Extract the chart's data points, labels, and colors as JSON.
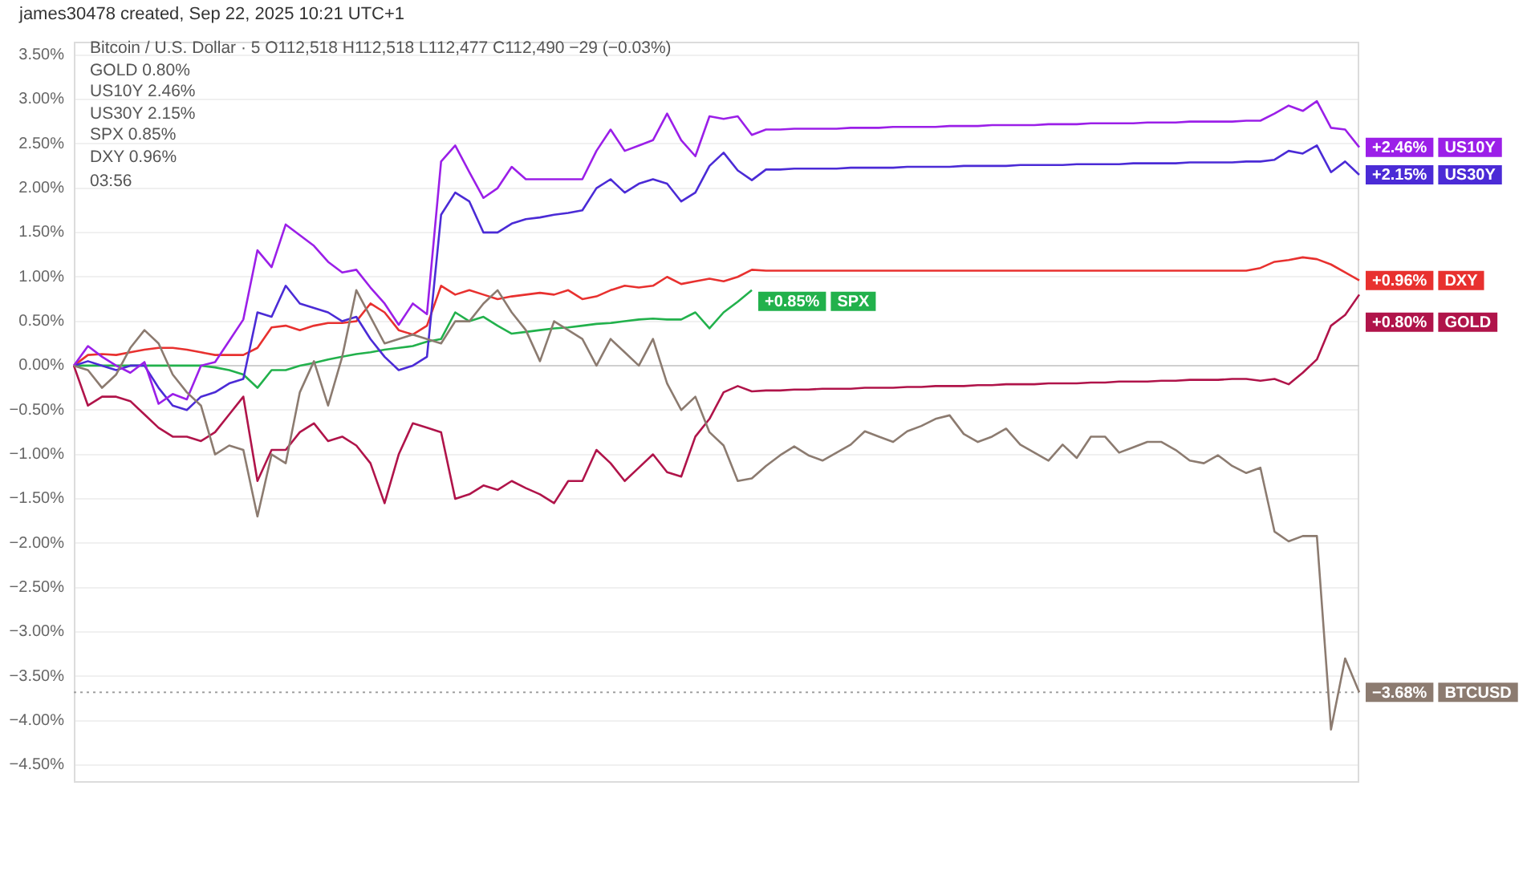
{
  "chart_data": {
    "type": "line",
    "title": "james30478 created, Sep 22, 2025 10:21 UTC+1",
    "subtitle": "Bitcoin / U.S. Dollar · 5  O112,518 H112,518 L112,477 C112,490 −29 (−0.03%)",
    "annotations": [
      "GOLD 0.80%",
      "US10Y 2.46%",
      "US30Y 2.15%",
      "SPX 0.85%",
      "DXY 0.96%",
      "03:56"
    ],
    "categories": [
      null,
      null,
      null,
      null,
      null,
      null,
      null,
      null,
      null,
      null,
      null,
      null,
      null,
      null,
      null,
      null,
      null,
      null,
      null,
      null,
      null,
      null,
      null,
      null,
      null,
      null,
      null,
      null,
      null,
      null,
      null,
      null,
      null,
      null,
      null,
      null,
      null,
      null,
      null,
      null,
      null,
      null,
      null,
      null,
      null,
      null,
      null,
      null,
      null,
      null,
      null,
      null,
      null,
      null,
      null,
      null,
      null,
      null,
      null,
      null,
      null,
      null,
      null,
      null,
      null,
      null,
      null,
      null,
      null,
      null,
      null,
      null,
      null,
      null,
      null,
      null,
      null,
      null,
      null,
      null,
      null,
      null,
      null,
      null,
      null,
      null,
      null,
      null,
      null,
      null,
      null,
      null
    ],
    "ylim": [
      -4.7,
      3.65
    ],
    "yticks": [
      {
        "value": 3.5,
        "label": "3.50%"
      },
      {
        "value": 3,
        "label": "3.00%"
      },
      {
        "value": 2.5,
        "label": "2.50%"
      },
      {
        "value": 2,
        "label": "2.00%"
      },
      {
        "value": 1.5,
        "label": "1.50%"
      },
      {
        "value": 1,
        "label": "1.00%"
      },
      {
        "value": 0.5,
        "label": "0.50%"
      },
      {
        "value": 0,
        "label": "0.00%"
      },
      {
        "value": -0.5,
        "label": "−0.50%"
      },
      {
        "value": -1,
        "label": "−1.00%"
      },
      {
        "value": -1.5,
        "label": "−1.50%"
      },
      {
        "value": -2,
        "label": "−2.00%"
      },
      {
        "value": -2.5,
        "label": "−2.50%"
      },
      {
        "value": -3,
        "label": "−3.00%"
      },
      {
        "value": -3.5,
        "label": "−3.50%"
      },
      {
        "value": -4,
        "label": "−4.00%"
      },
      {
        "value": -4.5,
        "label": "−4.50%"
      }
    ],
    "tick_labels": "y",
    "grid": "y",
    "legend": "right",
    "marker": "none",
    "line_style": "solid",
    "ref_lines": [
      {
        "axis": "y",
        "value": 0,
        "color": "#cfcfcf",
        "line_style": "solid"
      },
      {
        "axis": "y",
        "value": -3.68,
        "color": "#a0a0a0",
        "line_style": "dotted"
      }
    ],
    "series": [
      {
        "name": "BTCUSD",
        "color": "#8c7b70",
        "values": [
          0,
          -0.05,
          -0.25,
          -0.1,
          0.2,
          0.4,
          0.25,
          -0.1,
          -0.3,
          -0.45,
          -1.0,
          -0.9,
          -0.95,
          -1.7,
          -1.0,
          -1.1,
          -0.3,
          0.05,
          -0.45,
          0.1,
          0.85,
          0.55,
          0.25,
          0.3,
          0.35,
          0.3,
          0.25,
          0.5,
          0.5,
          0.7,
          0.85,
          0.6,
          0.4,
          0.05,
          0.5,
          0.4,
          0.3,
          0.0,
          0.3,
          0.15,
          0.0,
          0.3,
          -0.2,
          -0.5,
          -0.35,
          -0.75,
          -0.9,
          -1.3,
          -1.27,
          -1.13,
          -1.01,
          -0.91,
          -1.01,
          -1.07,
          -0.98,
          -0.89,
          -0.74,
          -0.8,
          -0.86,
          -0.74,
          -0.68,
          -0.6,
          -0.56,
          -0.77,
          -0.86,
          -0.8,
          -0.71,
          -0.89,
          -0.98,
          -1.07,
          -0.89,
          -1.04,
          -0.8,
          -0.8,
          -0.98,
          -0.92,
          -0.86,
          -0.86,
          -0.95,
          -1.07,
          -1.1,
          -1.01,
          -1.13,
          -1.21,
          -1.15,
          -1.87,
          -1.98,
          -1.92,
          -1.92,
          -4.1,
          -3.3,
          -3.68
        ],
        "value_labels": [
          null,
          null,
          null,
          null,
          null,
          null,
          null,
          null,
          null,
          null,
          null,
          null,
          null,
          null,
          null,
          null,
          null,
          null,
          null,
          null,
          null,
          null,
          null,
          null,
          null,
          null,
          null,
          null,
          null,
          null,
          null,
          null,
          null,
          null,
          null,
          null,
          null,
          null,
          null,
          null,
          null,
          null,
          null,
          null,
          null,
          null,
          null,
          null,
          null,
          null,
          null,
          null,
          null,
          null,
          null,
          null,
          null,
          null,
          null,
          null,
          null,
          null,
          null,
          null,
          null,
          null,
          null,
          null,
          null,
          null,
          null,
          null,
          null,
          null,
          null,
          null,
          null,
          null,
          null,
          null,
          null,
          null,
          null,
          null,
          null,
          null,
          null,
          null,
          null,
          null,
          null,
          "−3.68%"
        ]
      },
      {
        "name": "GOLD",
        "color": "#b0144a",
        "values": [
          0,
          -0.45,
          -0.35,
          -0.35,
          -0.4,
          -0.55,
          -0.7,
          -0.8,
          -0.8,
          -0.85,
          -0.75,
          -0.55,
          -0.35,
          -1.3,
          -0.95,
          -0.95,
          -0.75,
          -0.65,
          -0.85,
          -0.8,
          -0.9,
          -1.1,
          -1.55,
          -1.0,
          -0.65,
          -0.7,
          -0.75,
          -1.5,
          -1.45,
          -1.35,
          -1.4,
          -1.3,
          -1.38,
          -1.45,
          -1.55,
          -1.3,
          -1.3,
          -0.95,
          -1.1,
          -1.3,
          -1.15,
          -1.0,
          -1.2,
          -1.25,
          -0.8,
          -0.6,
          -0.3,
          -0.23,
          -0.29,
          -0.28,
          -0.28,
          -0.27,
          -0.27,
          -0.26,
          -0.26,
          -0.26,
          -0.25,
          -0.25,
          -0.25,
          -0.24,
          -0.24,
          -0.23,
          -0.23,
          -0.23,
          -0.22,
          -0.22,
          -0.21,
          -0.21,
          -0.21,
          -0.2,
          -0.2,
          -0.2,
          -0.19,
          -0.19,
          -0.18,
          -0.18,
          -0.18,
          -0.17,
          -0.17,
          -0.16,
          -0.16,
          -0.16,
          -0.15,
          -0.15,
          -0.17,
          -0.15,
          -0.21,
          -0.08,
          0.07,
          0.45,
          0.57,
          0.8
        ],
        "value_labels": [
          null,
          null,
          null,
          null,
          null,
          null,
          null,
          null,
          null,
          null,
          null,
          null,
          null,
          null,
          null,
          null,
          null,
          null,
          null,
          null,
          null,
          null,
          null,
          null,
          null,
          null,
          null,
          null,
          null,
          null,
          null,
          null,
          null,
          null,
          null,
          null,
          null,
          null,
          null,
          null,
          null,
          null,
          null,
          null,
          null,
          null,
          null,
          null,
          null,
          null,
          null,
          null,
          null,
          null,
          null,
          null,
          null,
          null,
          null,
          null,
          null,
          null,
          null,
          null,
          null,
          null,
          null,
          null,
          null,
          null,
          null,
          null,
          null,
          null,
          null,
          null,
          null,
          null,
          null,
          null,
          null,
          null,
          null,
          null,
          null,
          null,
          null,
          null,
          null,
          null,
          null,
          "+0.80%"
        ]
      },
      {
        "name": "US10Y",
        "color": "#9b1fe8",
        "values": [
          0,
          0.22,
          0.1,
          0,
          -0.08,
          0.04,
          -0.43,
          -0.32,
          -0.38,
          0,
          0.04,
          0.28,
          0.52,
          1.3,
          1.11,
          1.59,
          1.47,
          1.35,
          1.17,
          1.05,
          1.08,
          0.88,
          0.7,
          0.46,
          0.7,
          0.58,
          2.3,
          2.48,
          2.18,
          1.89,
          2.0,
          2.24,
          2.1,
          2.1,
          2.1,
          2.1,
          2.1,
          2.42,
          2.66,
          2.42,
          2.48,
          2.54,
          2.84,
          2.54,
          2.36,
          2.81,
          2.78,
          2.81,
          2.6,
          2.66,
          2.66,
          2.67,
          2.67,
          2.67,
          2.67,
          2.68,
          2.68,
          2.68,
          2.69,
          2.69,
          2.69,
          2.69,
          2.7,
          2.7,
          2.7,
          2.71,
          2.71,
          2.71,
          2.71,
          2.72,
          2.72,
          2.72,
          2.73,
          2.73,
          2.73,
          2.73,
          2.74,
          2.74,
          2.74,
          2.75,
          2.75,
          2.75,
          2.75,
          2.76,
          2.76,
          2.84,
          2.93,
          2.87,
          2.98,
          2.68,
          2.66,
          2.46
        ],
        "value_labels": [
          null,
          null,
          null,
          null,
          null,
          null,
          null,
          null,
          null,
          null,
          null,
          null,
          null,
          null,
          null,
          null,
          null,
          null,
          null,
          null,
          null,
          null,
          null,
          null,
          null,
          null,
          null,
          null,
          null,
          null,
          null,
          null,
          null,
          null,
          null,
          null,
          null,
          null,
          null,
          null,
          null,
          null,
          null,
          null,
          null,
          null,
          null,
          null,
          null,
          null,
          null,
          null,
          null,
          null,
          null,
          null,
          null,
          null,
          null,
          null,
          null,
          null,
          null,
          null,
          null,
          null,
          null,
          null,
          null,
          null,
          null,
          null,
          null,
          null,
          null,
          null,
          null,
          null,
          null,
          null,
          null,
          null,
          null,
          null,
          null,
          null,
          null,
          null,
          null,
          null,
          null,
          "+2.46%"
        ]
      },
      {
        "name": "US30Y",
        "color": "#4b2bd6",
        "values": [
          0,
          0.05,
          0,
          -0.05,
          0,
          0,
          -0.25,
          -0.45,
          -0.5,
          -0.35,
          -0.3,
          -0.2,
          -0.15,
          0.6,
          0.55,
          0.9,
          0.7,
          0.65,
          0.6,
          0.5,
          0.55,
          0.3,
          0.1,
          -0.05,
          0.0,
          0.1,
          1.7,
          1.95,
          1.85,
          1.5,
          1.5,
          1.6,
          1.65,
          1.67,
          1.7,
          1.72,
          1.75,
          2.0,
          2.1,
          1.95,
          2.05,
          2.1,
          2.05,
          1.85,
          1.95,
          2.25,
          2.4,
          2.2,
          2.09,
          2.21,
          2.21,
          2.22,
          2.22,
          2.22,
          2.22,
          2.23,
          2.23,
          2.23,
          2.23,
          2.24,
          2.24,
          2.24,
          2.24,
          2.25,
          2.25,
          2.25,
          2.25,
          2.26,
          2.26,
          2.26,
          2.26,
          2.27,
          2.27,
          2.27,
          2.27,
          2.28,
          2.28,
          2.28,
          2.28,
          2.29,
          2.29,
          2.29,
          2.29,
          2.3,
          2.3,
          2.32,
          2.42,
          2.39,
          2.48,
          2.18,
          2.3,
          2.15
        ],
        "value_labels": [
          null,
          null,
          null,
          null,
          null,
          null,
          null,
          null,
          null,
          null,
          null,
          null,
          null,
          null,
          null,
          null,
          null,
          null,
          null,
          null,
          null,
          null,
          null,
          null,
          null,
          null,
          null,
          null,
          null,
          null,
          null,
          null,
          null,
          null,
          null,
          null,
          null,
          null,
          null,
          null,
          null,
          null,
          null,
          null,
          null,
          null,
          null,
          null,
          null,
          null,
          null,
          null,
          null,
          null,
          null,
          null,
          null,
          null,
          null,
          null,
          null,
          null,
          null,
          null,
          null,
          null,
          null,
          null,
          null,
          null,
          null,
          null,
          null,
          null,
          null,
          null,
          null,
          null,
          null,
          null,
          null,
          null,
          null,
          null,
          null,
          null,
          null,
          null,
          null,
          null,
          null,
          "+2.15%"
        ]
      },
      {
        "name": "SPX",
        "color": "#22b14c",
        "values": [
          0,
          0,
          0,
          0,
          0,
          0,
          0,
          0,
          0,
          0,
          -0.02,
          -0.05,
          -0.1,
          -0.25,
          -0.05,
          -0.05,
          0.0,
          0.03,
          0.07,
          0.1,
          0.13,
          0.15,
          0.18,
          0.2,
          0.22,
          0.27,
          0.3,
          0.6,
          0.5,
          0.55,
          0.45,
          0.36,
          0.38,
          0.4,
          0.42,
          0.43,
          0.45,
          0.47,
          0.48,
          0.5,
          0.52,
          0.53,
          0.52,
          0.52,
          0.6,
          0.42,
          0.6,
          0.72,
          0.85,
          null,
          null,
          null,
          null,
          null,
          null,
          null,
          null,
          null,
          null,
          null,
          null,
          null,
          null,
          null,
          null,
          null,
          null,
          null,
          null,
          null,
          null,
          null,
          null,
          null,
          null,
          null,
          null,
          null,
          null,
          null,
          null,
          null,
          null,
          null,
          null,
          null,
          null,
          null,
          null,
          null,
          null,
          null
        ],
        "value_labels": [
          null,
          null,
          null,
          null,
          null,
          null,
          null,
          null,
          null,
          null,
          null,
          null,
          null,
          null,
          null,
          null,
          null,
          null,
          null,
          null,
          null,
          null,
          null,
          null,
          null,
          null,
          null,
          null,
          null,
          null,
          null,
          null,
          null,
          null,
          null,
          null,
          null,
          null,
          null,
          null,
          null,
          null,
          null,
          null,
          null,
          null,
          null,
          null,
          "+0.85%",
          null,
          null,
          null,
          null,
          null,
          null,
          null,
          null,
          null,
          null,
          null,
          null,
          null,
          null,
          null,
          null,
          null,
          null,
          null,
          null,
          null,
          null,
          null,
          null,
          null,
          null,
          null,
          null,
          null,
          null,
          null,
          null,
          null,
          null,
          null,
          null,
          null,
          null,
          null,
          null,
          null,
          null,
          null
        ]
      },
      {
        "name": "DXY",
        "color": "#e8312f",
        "values": [
          0,
          0.12,
          0.13,
          0.12,
          0.15,
          0.18,
          0.2,
          0.2,
          0.18,
          0.15,
          0.12,
          0.12,
          0.12,
          0.2,
          0.43,
          0.45,
          0.4,
          0.45,
          0.48,
          0.48,
          0.5,
          0.7,
          0.6,
          0.4,
          0.35,
          0.45,
          0.9,
          0.8,
          0.85,
          0.8,
          0.75,
          0.78,
          0.8,
          0.82,
          0.8,
          0.85,
          0.75,
          0.78,
          0.85,
          0.9,
          0.88,
          0.9,
          1.0,
          0.92,
          0.95,
          0.98,
          0.95,
          1.0,
          1.08,
          1.07,
          1.07,
          1.07,
          1.07,
          1.07,
          1.07,
          1.07,
          1.07,
          1.07,
          1.07,
          1.07,
          1.07,
          1.07,
          1.07,
          1.07,
          1.07,
          1.07,
          1.07,
          1.07,
          1.07,
          1.07,
          1.07,
          1.07,
          1.07,
          1.07,
          1.07,
          1.07,
          1.07,
          1.07,
          1.07,
          1.07,
          1.07,
          1.07,
          1.07,
          1.07,
          1.1,
          1.17,
          1.19,
          1.22,
          1.2,
          1.14,
          1.05,
          0.96
        ],
        "value_labels": [
          null,
          null,
          null,
          null,
          null,
          null,
          null,
          null,
          null,
          null,
          null,
          null,
          null,
          null,
          null,
          null,
          null,
          null,
          null,
          null,
          null,
          null,
          null,
          null,
          null,
          null,
          null,
          null,
          null,
          null,
          null,
          null,
          null,
          null,
          null,
          null,
          null,
          null,
          null,
          null,
          null,
          null,
          null,
          null,
          null,
          null,
          null,
          null,
          null,
          null,
          null,
          null,
          null,
          null,
          null,
          null,
          null,
          null,
          null,
          null,
          null,
          null,
          null,
          null,
          null,
          null,
          null,
          null,
          null,
          null,
          null,
          null,
          null,
          null,
          null,
          null,
          null,
          null,
          null,
          null,
          null,
          null,
          null,
          null,
          null,
          null,
          null,
          null,
          null,
          null,
          null,
          "+0.96%"
        ]
      }
    ]
  }
}
